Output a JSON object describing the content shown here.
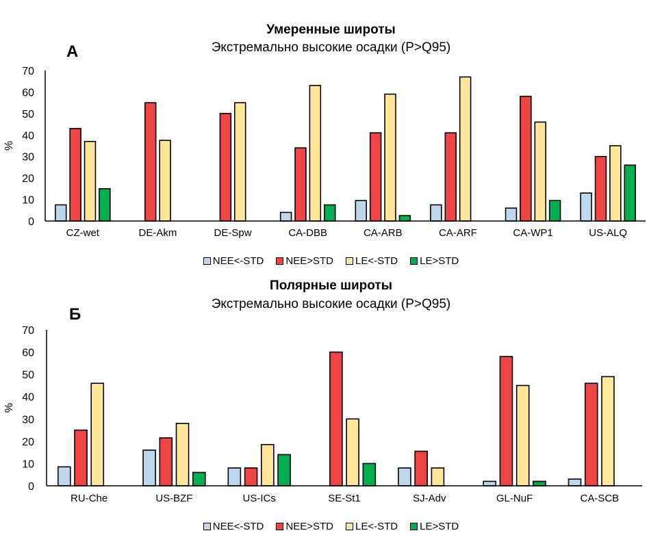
{
  "chart_data": [
    {
      "type": "bar",
      "panel_letter": "А",
      "title": "Умеренные широты",
      "subtitle": "Экстремально высокие осадки (P>Q95)",
      "xlabel": "",
      "ylabel": "%",
      "ylim": [
        0,
        70
      ],
      "yticks": [
        0,
        10,
        20,
        30,
        40,
        50,
        60,
        70
      ],
      "grid": false,
      "legend": "bottom",
      "categories": [
        "CZ-wet",
        "DE-Akm",
        "DE-Spw",
        "CA-DBB",
        "CA-ARB",
        "CA-ARF",
        "CA-WP1",
        "US-ALQ"
      ],
      "series": [
        {
          "name": "NEE<-STD",
          "color": "#bdd7ee",
          "values": [
            7.5,
            null,
            null,
            4,
            9.5,
            7.5,
            6,
            13
          ]
        },
        {
          "name": "NEE>STD",
          "color": "#ef4444",
          "values": [
            43,
            55,
            50,
            34,
            41,
            41,
            58,
            30
          ]
        },
        {
          "name": "LE<-STD",
          "color": "#ffe699",
          "values": [
            37,
            37.5,
            55,
            63,
            59,
            67,
            46,
            35
          ]
        },
        {
          "name": "LE>STD",
          "color": "#00b050",
          "values": [
            15,
            null,
            null,
            7.5,
            2.5,
            null,
            9.5,
            26
          ]
        }
      ]
    },
    {
      "type": "bar",
      "panel_letter": "Б",
      "title": "Полярные широты",
      "subtitle": "Экстремально высокие осадки (P>Q95)",
      "xlabel": "",
      "ylabel": "%",
      "ylim": [
        0,
        70
      ],
      "yticks": [
        0,
        10,
        20,
        30,
        40,
        50,
        60,
        70
      ],
      "grid": false,
      "legend": "bottom",
      "categories": [
        "RU-Che",
        "US-BZF",
        "US-ICs",
        "SE-St1",
        "SJ-Adv",
        "GL-NuF",
        "CA-SCB"
      ],
      "series": [
        {
          "name": "NEE<-STD",
          "color": "#bdd7ee",
          "values": [
            8.5,
            16,
            8,
            null,
            8,
            2,
            3
          ]
        },
        {
          "name": "NEE>STD",
          "color": "#ef4444",
          "values": [
            25,
            21.5,
            8,
            60,
            15.5,
            58,
            46
          ]
        },
        {
          "name": "LE<-STD",
          "color": "#ffe699",
          "values": [
            46,
            28,
            18.5,
            30,
            8,
            45,
            49
          ]
        },
        {
          "name": "LE>STD",
          "color": "#00b050",
          "values": [
            null,
            6,
            14,
            10,
            null,
            2,
            null
          ]
        }
      ]
    }
  ]
}
